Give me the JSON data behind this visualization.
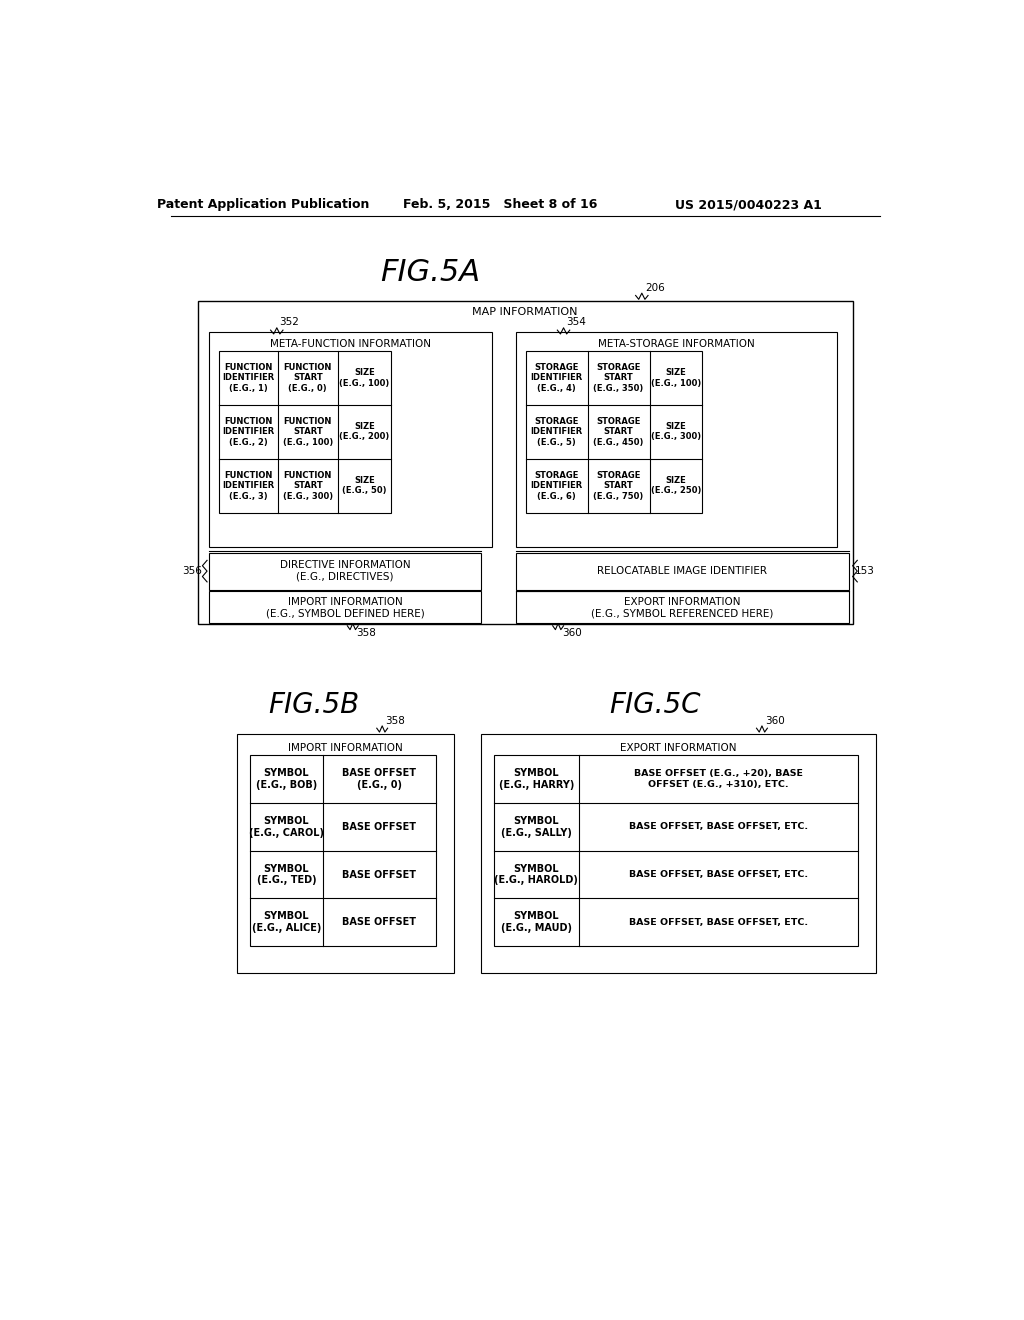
{
  "bg_color": "#ffffff",
  "header_left": "Patent Application Publication",
  "header_mid": "Feb. 5, 2015   Sheet 8 of 16",
  "header_right": "US 2015/0040223 A1",
  "fig5a_title": "FIG.5A",
  "fig5b_title": "FIG.5B",
  "fig5c_title": "FIG.5C",
  "label_206": "206",
  "label_352": "352",
  "label_354": "354",
  "label_356": "356",
  "label_153": "153",
  "label_358a": "358",
  "label_360a": "360",
  "label_358b": "358",
  "label_360b": "360",
  "map_info": "MAP INFORMATION",
  "meta_func": "META-FUNCTION INFORMATION",
  "meta_stor": "META-STORAGE INFORMATION",
  "directive_info": "DIRECTIVE INFORMATION\n(E.G., DIRECTIVES)",
  "relocatable": "RELOCATABLE IMAGE IDENTIFIER",
  "import_info_5a": "IMPORT INFORMATION\n(E.G., SYMBOL DEFINED HERE)",
  "export_info_5a": "EXPORT INFORMATION\n(E.G., SYMBOL REFERENCED HERE)",
  "func_rows": [
    [
      "FUNCTION\nIDENTIFIER\n(E.G., 1)",
      "FUNCTION\nSTART\n(E.G., 0)",
      "SIZE\n(E.G., 100)"
    ],
    [
      "FUNCTION\nIDENTIFIER\n(E.G., 2)",
      "FUNCTION\nSTART\n(E.G., 100)",
      "SIZE\n(E.G., 200)"
    ],
    [
      "FUNCTION\nIDENTIFIER\n(E.G., 3)",
      "FUNCTION\nSTART\n(E.G., 300)",
      "SIZE\n(E.G., 50)"
    ]
  ],
  "stor_rows": [
    [
      "STORAGE\nIDENTIFIER\n(E.G., 4)",
      "STORAGE\nSTART\n(E.G., 350)",
      "SIZE\n(E.G., 100)"
    ],
    [
      "STORAGE\nIDENTIFIER\n(E.G., 5)",
      "STORAGE\nSTART\n(E.G., 450)",
      "SIZE\n(E.G., 300)"
    ],
    [
      "STORAGE\nIDENTIFIER\n(E.G., 6)",
      "STORAGE\nSTART\n(E.G., 750)",
      "SIZE\n(E.G., 250)"
    ]
  ],
  "import_5b_title": "IMPORT INFORMATION",
  "export_5c_title": "EXPORT INFORMATION",
  "import_5b_rows": [
    [
      "SYMBOL\n(E.G., BOB)",
      "BASE OFFSET\n(E.G., 0)"
    ],
    [
      "SYMBOL\n(E.G., CAROL)",
      "BASE OFFSET"
    ],
    [
      "SYMBOL\n(E.G., TED)",
      "BASE OFFSET"
    ],
    [
      "SYMBOL\n(E.G., ALICE)",
      "BASE OFFSET"
    ]
  ],
  "export_5c_rows": [
    [
      "SYMBOL\n(E.G., HARRY)",
      "BASE OFFSET (E.G., +20), BASE\nOFFSET (E.G., +310), ETC."
    ],
    [
      "SYMBOL\n(E.G., SALLY)",
      "BASE OFFSET, BASE OFFSET, ETC."
    ],
    [
      "SYMBOL\n(E.G., HAROLD)",
      "BASE OFFSET, BASE OFFSET, ETC."
    ],
    [
      "SYMBOL\n(E.G., MAUD)",
      "BASE OFFSET, BASE OFFSET, ETC."
    ]
  ]
}
